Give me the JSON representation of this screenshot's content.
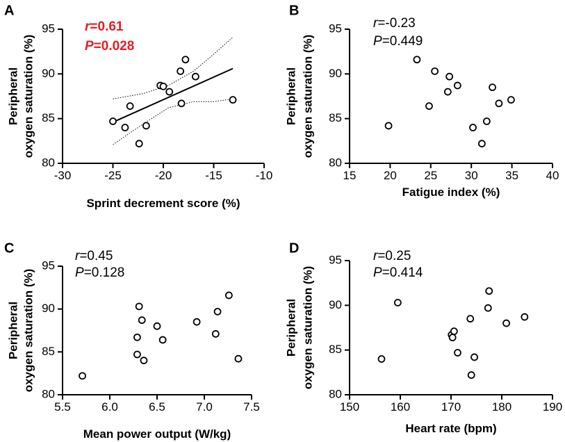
{
  "chart_data": [
    {
      "panel": "A",
      "type": "scatter",
      "xlabel": "Sprint decrement score (%)",
      "ylabel_lines": [
        "Peripheral",
        "oxygen saturation (%)"
      ],
      "xlim": [
        -30,
        -10
      ],
      "ylim": [
        80,
        95
      ],
      "xticks": [
        -30,
        -25,
        -20,
        -15,
        -10
      ],
      "xtick_labels": [
        "-30",
        "-25",
        "-20",
        "-15",
        "-10"
      ],
      "yticks": [
        80,
        85,
        90,
        95
      ],
      "ytick_labels": [
        "80",
        "85",
        "90",
        "95"
      ],
      "stat_r_symbol": "r",
      "stat_r_value": "=0.61",
      "stat_p_symbol": "P",
      "stat_p_value": "=0.028",
      "stat_color": "#e31e24",
      "points": [
        {
          "x": -25,
          "y": 84.7
        },
        {
          "x": -23.8,
          "y": 84.0
        },
        {
          "x": -23.3,
          "y": 86.4
        },
        {
          "x": -22.4,
          "y": 82.2
        },
        {
          "x": -21.7,
          "y": 84.2
        },
        {
          "x": -20.3,
          "y": 88.7
        },
        {
          "x": -20.0,
          "y": 88.6
        },
        {
          "x": -19.4,
          "y": 88.0
        },
        {
          "x": -18.3,
          "y": 90.3
        },
        {
          "x": -18.2,
          "y": 86.7
        },
        {
          "x": -17.8,
          "y": 91.6
        },
        {
          "x": -16.8,
          "y": 89.7
        },
        {
          "x": -13.1,
          "y": 87.1
        }
      ],
      "regression": {
        "x": [
          -25,
          -13.1
        ],
        "y": [
          84.6,
          90.6
        ]
      },
      "ci_upper": {
        "x": [
          -25,
          -22,
          -19.5,
          -17,
          -15,
          -13.1
        ],
        "y": [
          87.2,
          87.8,
          88.7,
          90.3,
          92.2,
          94.1
        ]
      },
      "ci_lower": {
        "x": [
          -25,
          -22,
          -19.5,
          -17,
          -15,
          -13.1
        ],
        "y": [
          82.1,
          84.4,
          86.2,
          86.9,
          86.9,
          87.2
        ]
      }
    },
    {
      "panel": "B",
      "type": "scatter",
      "xlabel": "Fatigue index (%)",
      "ylabel_lines": [
        "Peripheral",
        "oxygen saturation (%)"
      ],
      "xlim": [
        15,
        40
      ],
      "ylim": [
        80,
        95
      ],
      "xticks": [
        15,
        20,
        25,
        30,
        35,
        40
      ],
      "xtick_labels": [
        "15",
        "20",
        "25",
        "30",
        "35",
        "40"
      ],
      "yticks": [
        80,
        85,
        90,
        95
      ],
      "ytick_labels": [
        "80",
        "85",
        "90",
        "95"
      ],
      "stat_r_symbol": "r",
      "stat_r_value": "=-0.23",
      "stat_p_symbol": "P",
      "stat_p_value": "=0.449",
      "points": [
        {
          "x": 19.8,
          "y": 84.2
        },
        {
          "x": 23.3,
          "y": 91.6
        },
        {
          "x": 24.8,
          "y": 86.4
        },
        {
          "x": 25.5,
          "y": 90.3
        },
        {
          "x": 27.1,
          "y": 88.0
        },
        {
          "x": 27.3,
          "y": 89.7
        },
        {
          "x": 28.3,
          "y": 88.7
        },
        {
          "x": 30.2,
          "y": 84.0
        },
        {
          "x": 31.3,
          "y": 82.2
        },
        {
          "x": 31.9,
          "y": 84.7
        },
        {
          "x": 32.6,
          "y": 88.5
        },
        {
          "x": 33.4,
          "y": 86.7
        },
        {
          "x": 34.9,
          "y": 87.1
        }
      ]
    },
    {
      "panel": "C",
      "type": "scatter",
      "xlabel": "Mean power output (W/kg)",
      "ylabel_lines": [
        "Peripheral",
        "oxygen saturation (%)"
      ],
      "xlim": [
        5.5,
        7.5
      ],
      "ylim": [
        80,
        95
      ],
      "xticks": [
        5.5,
        6.0,
        6.5,
        7.0,
        7.5
      ],
      "xtick_labels": [
        "5.5",
        "6.0",
        "6.5",
        "7.0",
        "7.5"
      ],
      "yticks": [
        80,
        85,
        90,
        95
      ],
      "ytick_labels": [
        "80",
        "85",
        "90",
        "95"
      ],
      "stat_r_symbol": "r",
      "stat_r_value": "=0.45",
      "stat_p_symbol": "P",
      "stat_p_value": "=0.128",
      "points": [
        {
          "x": 5.71,
          "y": 82.2
        },
        {
          "x": 6.29,
          "y": 86.7
        },
        {
          "x": 6.29,
          "y": 84.7
        },
        {
          "x": 6.31,
          "y": 90.3
        },
        {
          "x": 6.34,
          "y": 88.7
        },
        {
          "x": 6.36,
          "y": 84.0
        },
        {
          "x": 6.5,
          "y": 88.0
        },
        {
          "x": 6.56,
          "y": 86.4
        },
        {
          "x": 6.92,
          "y": 88.5
        },
        {
          "x": 7.12,
          "y": 87.1
        },
        {
          "x": 7.14,
          "y": 89.7
        },
        {
          "x": 7.26,
          "y": 91.6
        },
        {
          "x": 7.36,
          "y": 84.2
        }
      ]
    },
    {
      "panel": "D",
      "type": "scatter",
      "xlabel": "Heart rate (bpm)",
      "ylabel_lines": [
        "Peripheral",
        "oxygen saturation (%)"
      ],
      "xlim": [
        150,
        190
      ],
      "ylim": [
        80,
        95
      ],
      "xticks": [
        150,
        160,
        170,
        180,
        190
      ],
      "xtick_labels": [
        "150",
        "160",
        "170",
        "180",
        "190"
      ],
      "yticks": [
        80,
        85,
        90,
        95
      ],
      "ytick_labels": [
        "80",
        "85",
        "90",
        "95"
      ],
      "stat_r_symbol": "r",
      "stat_r_value": "=0.25",
      "stat_p_symbol": "P",
      "stat_p_value": "=0.414",
      "points": [
        {
          "x": 156.3,
          "y": 84.0
        },
        {
          "x": 159.5,
          "y": 90.3
        },
        {
          "x": 170.1,
          "y": 86.7
        },
        {
          "x": 170.3,
          "y": 86.4
        },
        {
          "x": 170.6,
          "y": 87.1
        },
        {
          "x": 171.3,
          "y": 84.7
        },
        {
          "x": 173.8,
          "y": 88.5
        },
        {
          "x": 174.0,
          "y": 82.2
        },
        {
          "x": 174.6,
          "y": 84.2
        },
        {
          "x": 177.3,
          "y": 89.7
        },
        {
          "x": 177.5,
          "y": 91.6
        },
        {
          "x": 180.9,
          "y": 88.0
        },
        {
          "x": 184.5,
          "y": 88.7
        }
      ]
    }
  ]
}
